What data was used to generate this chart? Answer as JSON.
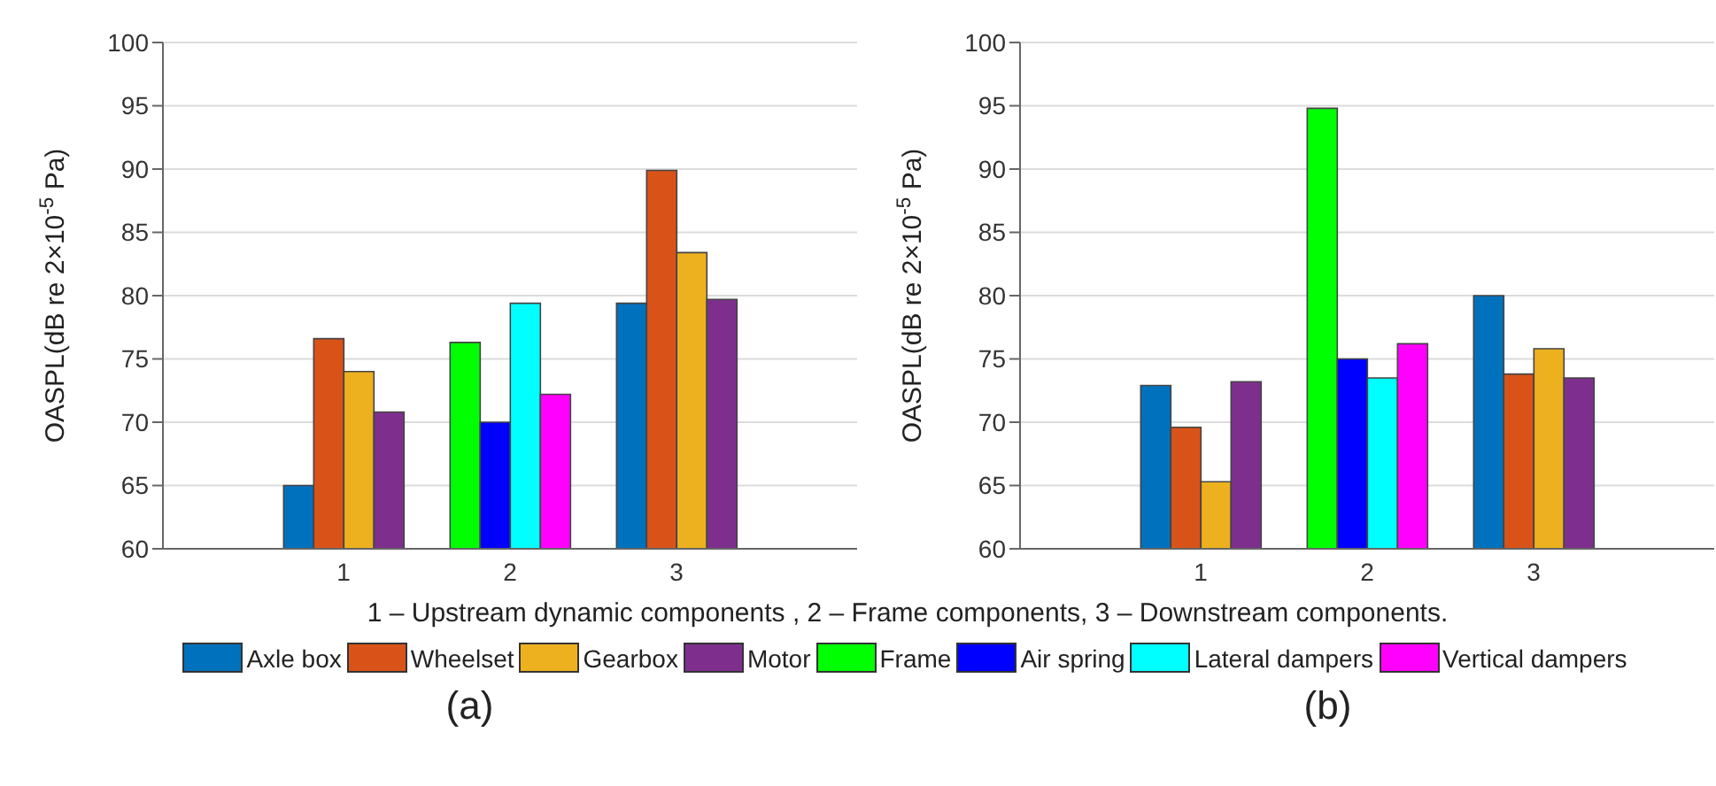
{
  "chart_data": [
    {
      "type": "bar",
      "categories": [
        "1",
        "2",
        "3"
      ],
      "ylabel": "OASPL(dB re 2×10$^{-5}$ Pa)",
      "xlabel": "1 – Upstream dynamic components , 2 – Frame components, 3 – Downstream components.",
      "ylim": [
        60,
        100
      ],
      "yticks": [
        60,
        65,
        70,
        75,
        80,
        85,
        90,
        95,
        100
      ],
      "grid": "y",
      "legend": "bottom",
      "annotations": [
        "(a)"
      ],
      "series": [
        {
          "name": "Axle box",
          "color": "#0072bd",
          "values": [
            65.0,
            null,
            79.4
          ]
        },
        {
          "name": "Wheelset",
          "color": "#d95319",
          "values": [
            76.6,
            null,
            89.9
          ]
        },
        {
          "name": "Gearbox",
          "color": "#edb120",
          "values": [
            74.0,
            null,
            83.4
          ]
        },
        {
          "name": "Motor",
          "color": "#7e2f8e",
          "values": [
            70.8,
            null,
            79.7
          ]
        },
        {
          "name": "Frame",
          "color": "#00ff00",
          "values": [
            null,
            76.3,
            null
          ]
        },
        {
          "name": "Air spring",
          "color": "#0000ff",
          "values": [
            null,
            70.0,
            null
          ]
        },
        {
          "name": "Lateral dampers",
          "color": "#00ffff",
          "values": [
            null,
            79.4,
            null
          ]
        },
        {
          "name": "Vertical dampers",
          "color": "#ff00ff",
          "values": [
            null,
            72.2,
            null
          ]
        }
      ]
    },
    {
      "type": "bar",
      "categories": [
        "1",
        "2",
        "3"
      ],
      "ylabel": "OASPL(dB re 2×10$^{-5}$ Pa)",
      "ylim": [
        60,
        100
      ],
      "yticks": [
        60,
        65,
        70,
        75,
        80,
        85,
        90,
        95,
        100
      ],
      "grid": "y",
      "annotations": [
        "(b)"
      ],
      "series": [
        {
          "color": "#0072bd",
          "values": [
            72.9,
            null,
            80.0
          ]
        },
        {
          "color": "#d95319",
          "values": [
            69.6,
            null,
            73.8
          ]
        },
        {
          "color": "#edb120",
          "values": [
            65.3,
            null,
            75.8
          ]
        },
        {
          "color": "#7e2f8e",
          "values": [
            73.2,
            null,
            73.5
          ]
        },
        {
          "color": "#00ff00",
          "values": [
            null,
            94.8,
            null
          ]
        },
        {
          "color": "#0000ff",
          "values": [
            null,
            75.0,
            null
          ]
        },
        {
          "color": "#00ffff",
          "values": [
            null,
            73.5,
            null
          ]
        },
        {
          "color": "#ff00ff",
          "values": [
            null,
            76.2,
            null
          ]
        }
      ]
    }
  ]
}
